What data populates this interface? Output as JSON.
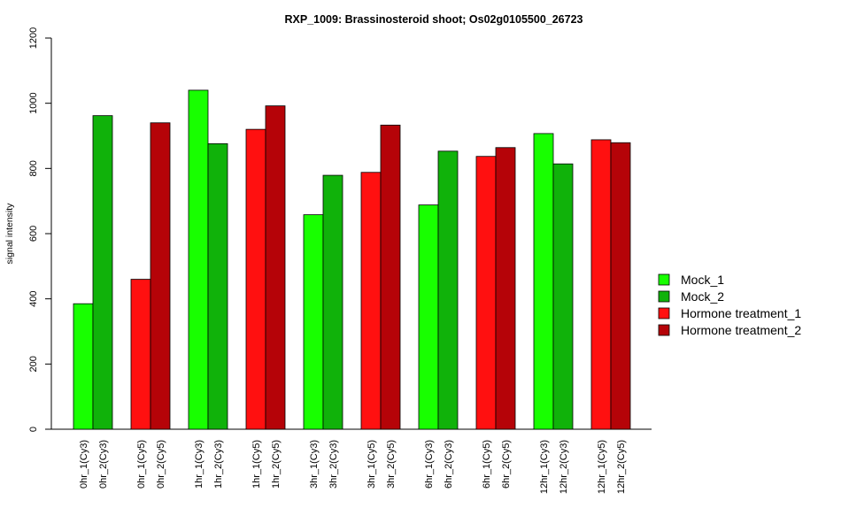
{
  "chart_data": {
    "type": "bar",
    "title": "RXP_1009: Brassinosteroid shoot; Os02g0105500_26723",
    "ylabel": "signal intensity",
    "xlabel": "",
    "ylim": [
      0,
      1200
    ],
    "yticks": [
      0,
      200,
      400,
      600,
      800,
      1000,
      1200
    ],
    "grid": false,
    "legend_position": "right",
    "bars": [
      {
        "label": "0hr_1(Cy3)",
        "value": 385,
        "series": "Mock_1"
      },
      {
        "label": "0hr_2(Cy3)",
        "value": 962,
        "series": "Mock_2"
      },
      {
        "label": "0hr_1(Cy5)",
        "value": 460,
        "series": "Hormone treatment_1"
      },
      {
        "label": "0hr_2(Cy5)",
        "value": 940,
        "series": "Hormone treatment_2"
      },
      {
        "label": "1hr_1(Cy3)",
        "value": 1040,
        "series": "Mock_1"
      },
      {
        "label": "1hr_2(Cy3)",
        "value": 876,
        "series": "Mock_2"
      },
      {
        "label": "1hr_1(Cy5)",
        "value": 920,
        "series": "Hormone treatment_1"
      },
      {
        "label": "1hr_2(Cy5)",
        "value": 992,
        "series": "Hormone treatment_2"
      },
      {
        "label": "3hr_1(Cy3)",
        "value": 658,
        "series": "Mock_1"
      },
      {
        "label": "3hr_2(Cy3)",
        "value": 779,
        "series": "Mock_2"
      },
      {
        "label": "3hr_1(Cy5)",
        "value": 788,
        "series": "Hormone treatment_1"
      },
      {
        "label": "3hr_2(Cy5)",
        "value": 933,
        "series": "Hormone treatment_2"
      },
      {
        "label": "6hr_1(Cy3)",
        "value": 688,
        "series": "Mock_1"
      },
      {
        "label": "6hr_2(Cy3)",
        "value": 853,
        "series": "Mock_2"
      },
      {
        "label": "6hr_1(Cy5)",
        "value": 837,
        "series": "Hormone treatment_1"
      },
      {
        "label": "6hr_2(Cy5)",
        "value": 864,
        "series": "Hormone treatment_2"
      },
      {
        "label": "12hr_1(Cy3)",
        "value": 907,
        "series": "Mock_1"
      },
      {
        "label": "12hr_2(Cy3)",
        "value": 814,
        "series": "Mock_2"
      },
      {
        "label": "12hr_1(Cy5)",
        "value": 888,
        "series": "Hormone treatment_1"
      },
      {
        "label": "12hr_2(Cy5)",
        "value": 879,
        "series": "Hormone treatment_2"
      }
    ],
    "legend": [
      {
        "name": "Mock_1",
        "color": "#18ff00"
      },
      {
        "name": "Mock_2",
        "color": "#10b20a"
      },
      {
        "name": "Hormone treatment_1",
        "color": "#ff1010"
      },
      {
        "name": "Hormone treatment_2",
        "color": "#b50308"
      }
    ]
  }
}
